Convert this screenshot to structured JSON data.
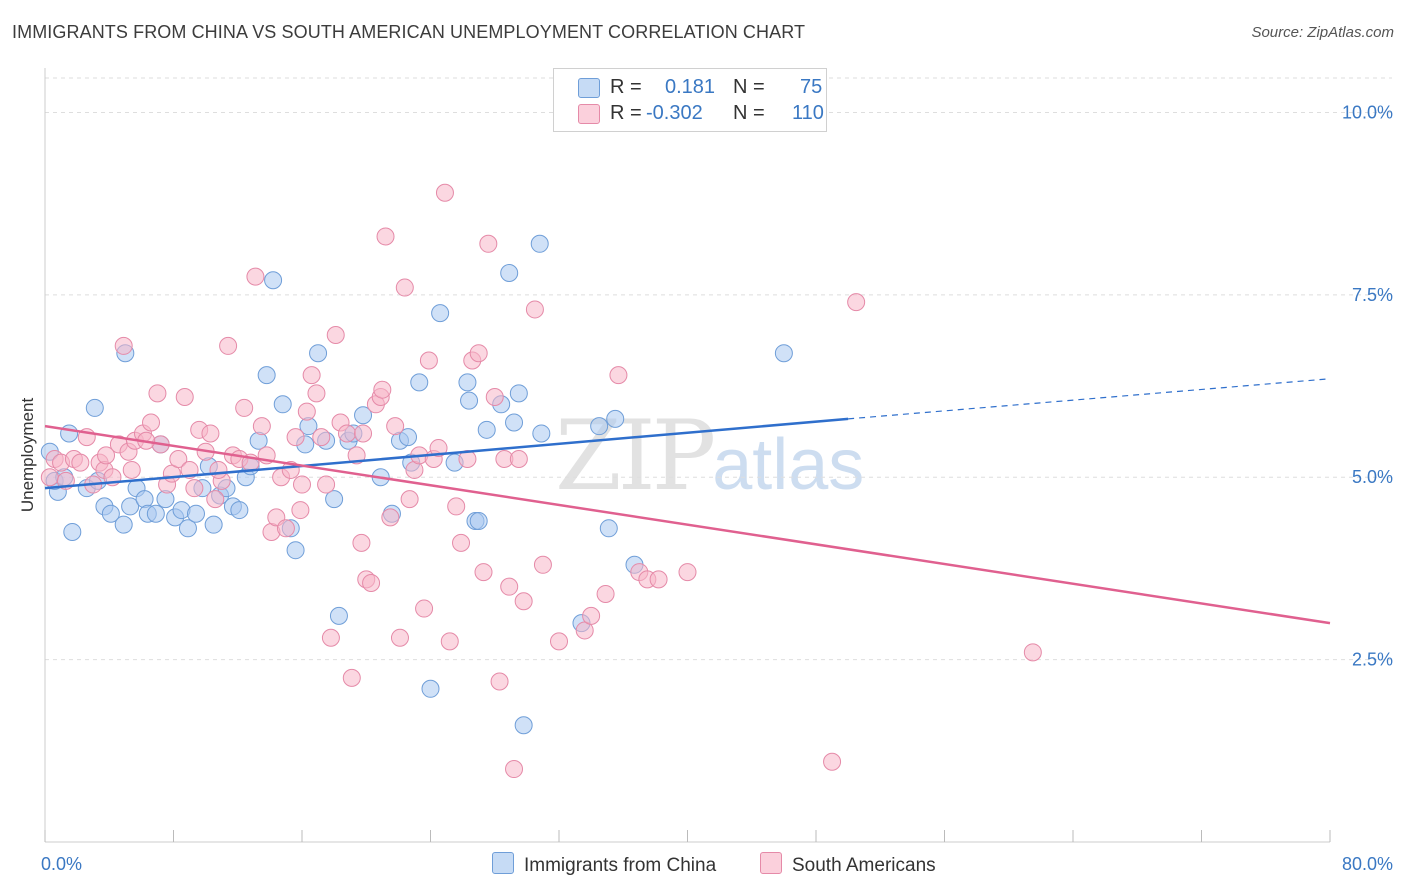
{
  "title": "IMMIGRANTS FROM CHINA VS SOUTH AMERICAN UNEMPLOYMENT CORRELATION CHART",
  "source": "Source: ZipAtlas.com",
  "watermark": {
    "zip": "ZIP",
    "atlas": "atlas"
  },
  "legend": {
    "rows": [
      {
        "r_label": "R =",
        "r_value": "0.181",
        "n_label": "N =",
        "n_value": "75",
        "color": "#a9c8f0"
      },
      {
        "r_label": "R =",
        "r_value": "-0.302",
        "n_label": "N =",
        "n_value": "110",
        "color": "#f7b6c8"
      }
    ]
  },
  "bottom_legend": [
    {
      "label": "Immigrants from China",
      "color": "#a9c8f0"
    },
    {
      "label": "South Americans",
      "color": "#f7b6c8"
    }
  ],
  "chart_data": {
    "type": "scatter",
    "title": "IMMIGRANTS FROM CHINA VS SOUTH AMERICAN UNEMPLOYMENT CORRELATION CHART",
    "xlabel": "",
    "ylabel": "Unemployment",
    "xlim": [
      0,
      80
    ],
    "ylim": [
      0,
      10.5
    ],
    "x_tick_labels": [
      "0.0%",
      "80.0%"
    ],
    "y_ticks": [
      2.5,
      5.0,
      7.5,
      10.0
    ],
    "y_tick_labels": [
      "2.5%",
      "5.0%",
      "7.5%",
      "10.0%"
    ],
    "grid": "horizontal dashed",
    "series": [
      {
        "name": "Immigrants from China",
        "color": "#a9c8f0",
        "stroke": "#6f9ed8",
        "trend": {
          "x": [
            0,
            50
          ],
          "y": [
            4.85,
            5.8
          ],
          "dashed_to": [
            80,
            6.35
          ],
          "color": "#2f6fcc"
        },
        "points": [
          [
            0.3,
            5.35
          ],
          [
            0.8,
            4.8
          ],
          [
            0.6,
            4.95
          ],
          [
            1.5,
            5.6
          ],
          [
            2.6,
            4.85
          ],
          [
            1.7,
            4.25
          ],
          [
            3.3,
            4.95
          ],
          [
            3.7,
            4.6
          ],
          [
            4.1,
            4.5
          ],
          [
            4.9,
            4.35
          ],
          [
            5.3,
            4.6
          ],
          [
            5.7,
            4.85
          ],
          [
            6.2,
            4.7
          ],
          [
            6.4,
            4.5
          ],
          [
            6.9,
            4.5
          ],
          [
            7.2,
            5.45
          ],
          [
            7.5,
            4.7
          ],
          [
            8.1,
            4.45
          ],
          [
            8.5,
            4.55
          ],
          [
            8.9,
            4.3
          ],
          [
            9.4,
            4.5
          ],
          [
            9.8,
            4.85
          ],
          [
            10.2,
            5.15
          ],
          [
            10.5,
            4.35
          ],
          [
            10.9,
            4.75
          ],
          [
            11.3,
            4.85
          ],
          [
            11.7,
            4.6
          ],
          [
            12.1,
            4.55
          ],
          [
            12.5,
            5.0
          ],
          [
            12.8,
            5.15
          ],
          [
            13.3,
            5.5
          ],
          [
            13.8,
            6.4
          ],
          [
            14.2,
            7.7
          ],
          [
            14.8,
            6.0
          ],
          [
            15.3,
            4.3
          ],
          [
            15.6,
            4.0
          ],
          [
            16.2,
            5.45
          ],
          [
            16.4,
            5.7
          ],
          [
            17.0,
            6.7
          ],
          [
            17.5,
            5.5
          ],
          [
            18.0,
            4.7
          ],
          [
            18.3,
            3.1
          ],
          [
            18.9,
            5.5
          ],
          [
            19.2,
            5.6
          ],
          [
            19.8,
            5.85
          ],
          [
            20.9,
            5.0
          ],
          [
            21.6,
            4.5
          ],
          [
            22.1,
            5.5
          ],
          [
            22.6,
            5.55
          ],
          [
            22.8,
            5.2
          ],
          [
            23.3,
            6.3
          ],
          [
            24.0,
            2.1
          ],
          [
            24.6,
            7.25
          ],
          [
            25.5,
            5.2
          ],
          [
            26.3,
            6.3
          ],
          [
            26.4,
            6.05
          ],
          [
            26.8,
            4.4
          ],
          [
            27.5,
            5.65
          ],
          [
            28.4,
            6.0
          ],
          [
            28.9,
            7.8
          ],
          [
            29.2,
            5.75
          ],
          [
            29.5,
            6.15
          ],
          [
            29.8,
            1.6
          ],
          [
            30.8,
            8.2
          ],
          [
            30.9,
            5.6
          ],
          [
            33.4,
            3.0
          ],
          [
            34.5,
            5.7
          ],
          [
            35.1,
            4.3
          ],
          [
            35.5,
            5.8
          ],
          [
            36.7,
            3.8
          ],
          [
            46.0,
            6.7
          ],
          [
            1.2,
            5.0
          ],
          [
            3.1,
            5.95
          ],
          [
            5.0,
            6.7
          ],
          [
            27.0,
            4.4
          ]
        ]
      },
      {
        "name": "South Americans",
        "color": "#f7b6c8",
        "stroke": "#e58aa8",
        "trend": {
          "x": [
            0,
            80
          ],
          "y": [
            5.7,
            3.0
          ],
          "color": "#e0608f"
        },
        "points": [
          [
            0.3,
            5.0
          ],
          [
            0.6,
            5.25
          ],
          [
            1.0,
            5.2
          ],
          [
            1.3,
            4.95
          ],
          [
            1.8,
            5.25
          ],
          [
            2.2,
            5.2
          ],
          [
            2.6,
            5.55
          ],
          [
            3.0,
            4.9
          ],
          [
            3.4,
            5.2
          ],
          [
            3.7,
            5.1
          ],
          [
            4.2,
            5.0
          ],
          [
            4.6,
            5.45
          ],
          [
            4.9,
            6.8
          ],
          [
            5.2,
            5.35
          ],
          [
            5.6,
            5.5
          ],
          [
            6.1,
            5.6
          ],
          [
            6.6,
            5.75
          ],
          [
            7.0,
            6.15
          ],
          [
            7.2,
            5.45
          ],
          [
            7.6,
            4.9
          ],
          [
            7.9,
            5.05
          ],
          [
            8.3,
            5.25
          ],
          [
            8.7,
            6.1
          ],
          [
            9.0,
            5.1
          ],
          [
            9.3,
            4.85
          ],
          [
            9.6,
            5.65
          ],
          [
            10.0,
            5.35
          ],
          [
            10.3,
            5.6
          ],
          [
            10.6,
            4.7
          ],
          [
            11.0,
            4.95
          ],
          [
            11.4,
            6.8
          ],
          [
            11.7,
            5.3
          ],
          [
            12.1,
            5.25
          ],
          [
            12.4,
            5.95
          ],
          [
            12.8,
            5.2
          ],
          [
            13.1,
            7.75
          ],
          [
            13.5,
            5.7
          ],
          [
            13.8,
            5.3
          ],
          [
            14.1,
            4.25
          ],
          [
            14.4,
            4.45
          ],
          [
            14.7,
            5.0
          ],
          [
            15.0,
            4.3
          ],
          [
            15.3,
            5.1
          ],
          [
            15.6,
            5.55
          ],
          [
            15.9,
            4.55
          ],
          [
            16.3,
            5.9
          ],
          [
            16.6,
            6.4
          ],
          [
            16.9,
            6.15
          ],
          [
            17.2,
            5.55
          ],
          [
            17.5,
            4.9
          ],
          [
            17.8,
            2.8
          ],
          [
            18.1,
            6.95
          ],
          [
            18.4,
            5.75
          ],
          [
            18.8,
            5.6
          ],
          [
            19.1,
            2.25
          ],
          [
            19.4,
            5.3
          ],
          [
            19.7,
            4.1
          ],
          [
            20.0,
            3.6
          ],
          [
            20.3,
            3.55
          ],
          [
            20.6,
            6.0
          ],
          [
            20.9,
            6.1
          ],
          [
            21.2,
            8.3
          ],
          [
            21.5,
            4.45
          ],
          [
            21.8,
            5.7
          ],
          [
            22.1,
            2.8
          ],
          [
            22.4,
            7.6
          ],
          [
            22.7,
            4.7
          ],
          [
            23.0,
            5.1
          ],
          [
            23.3,
            5.3
          ],
          [
            23.6,
            3.2
          ],
          [
            23.9,
            6.6
          ],
          [
            24.2,
            5.25
          ],
          [
            24.5,
            5.4
          ],
          [
            24.9,
            8.9
          ],
          [
            25.2,
            2.75
          ],
          [
            25.6,
            4.6
          ],
          [
            25.9,
            4.1
          ],
          [
            26.3,
            5.25
          ],
          [
            26.6,
            6.6
          ],
          [
            27.0,
            6.7
          ],
          [
            27.3,
            3.7
          ],
          [
            27.6,
            8.2
          ],
          [
            28.0,
            6.1
          ],
          [
            28.3,
            2.2
          ],
          [
            28.6,
            5.25
          ],
          [
            28.9,
            3.5
          ],
          [
            29.2,
            1.0
          ],
          [
            29.5,
            5.25
          ],
          [
            29.8,
            3.3
          ],
          [
            30.5,
            7.3
          ],
          [
            31.0,
            3.8
          ],
          [
            32.0,
            2.75
          ],
          [
            33.6,
            2.9
          ],
          [
            34.0,
            3.1
          ],
          [
            34.9,
            3.4
          ],
          [
            35.7,
            6.4
          ],
          [
            37.0,
            3.7
          ],
          [
            37.5,
            3.6
          ],
          [
            38.2,
            3.6
          ],
          [
            40.0,
            3.7
          ],
          [
            49.0,
            1.1
          ],
          [
            50.5,
            7.4
          ],
          [
            61.5,
            2.6
          ],
          [
            3.8,
            5.3
          ],
          [
            5.4,
            5.1
          ],
          [
            6.3,
            5.5
          ],
          [
            10.8,
            5.1
          ],
          [
            16.0,
            4.9
          ],
          [
            19.8,
            5.6
          ],
          [
            21.0,
            6.2
          ]
        ]
      }
    ]
  }
}
